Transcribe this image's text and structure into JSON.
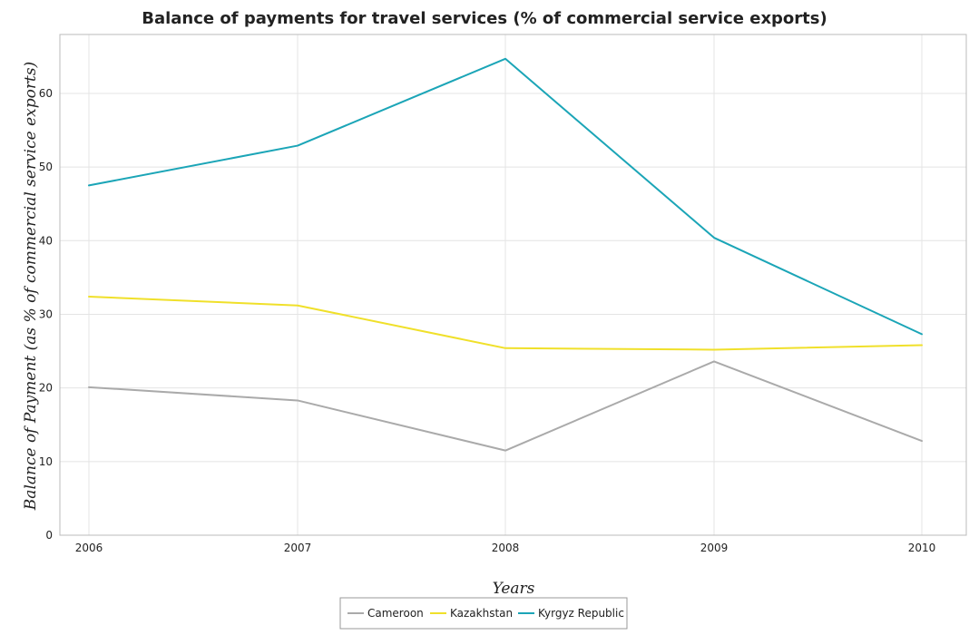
{
  "chart_data": {
    "type": "line",
    "title": "Balance of payments for travel services (% of commercial service exports)",
    "xlabel": "Years",
    "ylabel": "Balance of Payment (as % of commercial service exports)",
    "categories": [
      "2006",
      "2007",
      "2008",
      "2009",
      "2010"
    ],
    "ylim": [
      0,
      68
    ],
    "yticks": [
      0,
      10,
      20,
      30,
      40,
      50,
      60
    ],
    "grid": true,
    "legend_position": "bottom-center",
    "series": [
      {
        "name": "Cameroon",
        "color": "#aaaaaa",
        "values": [
          20.1,
          18.3,
          11.5,
          23.6,
          12.8
        ]
      },
      {
        "name": "Kazakhstan",
        "color": "#f0e02a",
        "values": [
          32.4,
          31.2,
          25.4,
          25.2,
          25.8
        ]
      },
      {
        "name": "Kyrgyz Republic",
        "color": "#1ba5b7",
        "values": [
          47.5,
          52.9,
          64.7,
          40.4,
          27.3
        ]
      }
    ]
  }
}
